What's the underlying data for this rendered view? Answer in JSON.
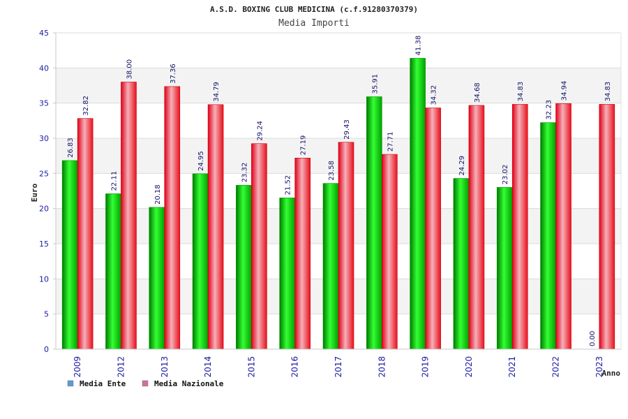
{
  "chart_data": {
    "type": "bar",
    "title": "A.S.D. BOXING CLUB MEDICINA (c.f.91280370379)",
    "subtitle": "Media Importi",
    "xlabel": "Anno",
    "ylabel": "Euro",
    "ylim": [
      0,
      45
    ],
    "yticks": [
      0,
      5,
      10,
      15,
      20,
      25,
      30,
      35,
      40,
      45
    ],
    "grid": true,
    "legend_position": "bottom-left",
    "categories": [
      "2009",
      "2012",
      "2013",
      "2014",
      "2015",
      "2016",
      "2017",
      "2018",
      "2019",
      "2020",
      "2021",
      "2022",
      "2023"
    ],
    "series": [
      {
        "name": "Media Ente",
        "legend_color": "#5b9bd5",
        "bar_color": "#00cc00",
        "values": [
          26.83,
          22.11,
          20.18,
          24.95,
          23.32,
          21.52,
          23.58,
          35.91,
          41.38,
          24.29,
          23.02,
          32.23,
          0.0
        ],
        "labels": [
          "26.83",
          "22.11",
          "20.18",
          "24.95",
          "23.32",
          "21.52",
          "23.58",
          "35.91",
          "41.38",
          "24.29",
          "23.02",
          "32.23",
          "0.00"
        ]
      },
      {
        "name": "Media Nazionale",
        "legend_color": "#d070a0",
        "bar_color": "#ee1c25",
        "values": [
          32.82,
          38.0,
          37.36,
          34.79,
          29.24,
          27.19,
          29.43,
          27.71,
          34.32,
          34.68,
          34.83,
          34.94,
          34.83
        ],
        "labels": [
          "32.82",
          "38.00",
          "37.36",
          "34.79",
          "29.24",
          "27.19",
          "29.43",
          "27.71",
          "34.32",
          "34.68",
          "34.83",
          "34.94",
          "34.83"
        ]
      }
    ]
  }
}
